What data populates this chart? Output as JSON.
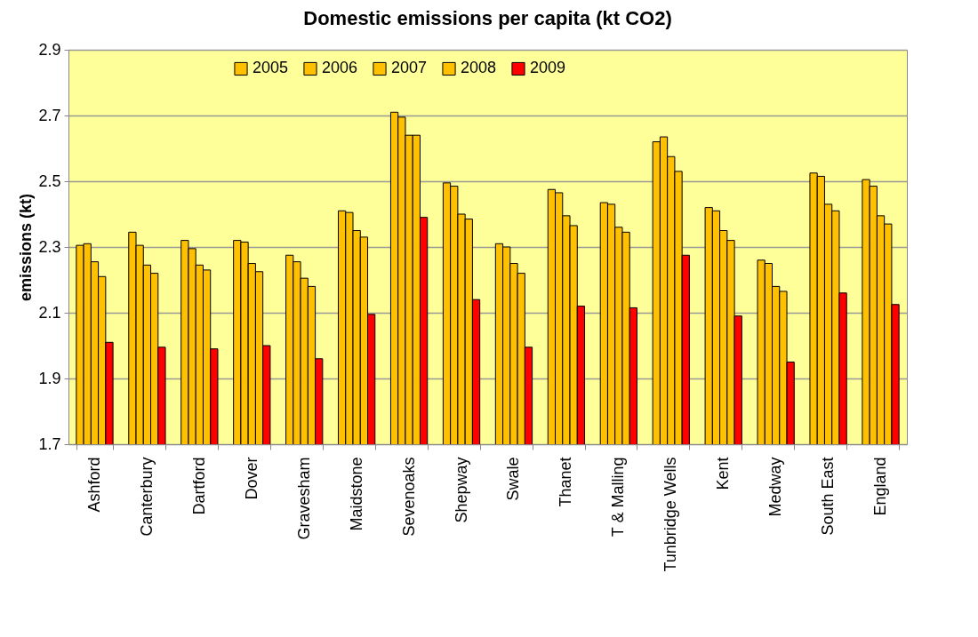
{
  "chart_data": {
    "type": "bar",
    "title": "Domestic emissions per capita (kt  CO2)",
    "ylabel": "emissions (kt)",
    "categories": [
      "Ashford",
      "Canterbury",
      "Dartford",
      "Dover",
      "Gravesham",
      "Maidstone",
      "Sevenoaks",
      "Shepway",
      "Swale",
      "Thanet",
      "T & Malling",
      "Tunbridge Wells",
      "Kent",
      "Medway",
      "South East",
      "England"
    ],
    "series": [
      {
        "name": "2005",
        "color": "#ffc000",
        "values": [
          2.305,
          2.345,
          2.32,
          2.32,
          2.275,
          2.41,
          2.71,
          2.495,
          2.31,
          2.475,
          2.435,
          2.62,
          2.42,
          2.26,
          2.525,
          2.505
        ]
      },
      {
        "name": "2006",
        "color": "#ffc000",
        "values": [
          2.31,
          2.305,
          2.295,
          2.315,
          2.255,
          2.405,
          2.695,
          2.485,
          2.3,
          2.465,
          2.43,
          2.635,
          2.41,
          2.25,
          2.515,
          2.485
        ]
      },
      {
        "name": "2007",
        "color": "#ffc000",
        "values": [
          2.255,
          2.245,
          2.245,
          2.25,
          2.205,
          2.35,
          2.64,
          2.4,
          2.25,
          2.395,
          2.36,
          2.575,
          2.35,
          2.18,
          2.43,
          2.395
        ]
      },
      {
        "name": "2008",
        "color": "#ffc000",
        "values": [
          2.21,
          2.22,
          2.23,
          2.225,
          2.18,
          2.33,
          2.64,
          2.385,
          2.22,
          2.365,
          2.345,
          2.53,
          2.32,
          2.165,
          2.41,
          2.37
        ]
      },
      {
        "name": "2009",
        "color": "#ff0000",
        "values": [
          2.01,
          1.995,
          1.99,
          2.0,
          1.96,
          2.095,
          2.39,
          2.14,
          1.995,
          2.12,
          2.115,
          2.275,
          2.09,
          1.95,
          2.16,
          2.125
        ]
      }
    ],
    "ylim": [
      1.7,
      2.9
    ],
    "yticks": [
      1.7,
      1.9,
      2.1,
      2.3,
      2.5,
      2.7,
      2.9
    ],
    "grid": "y",
    "legend": "top"
  }
}
